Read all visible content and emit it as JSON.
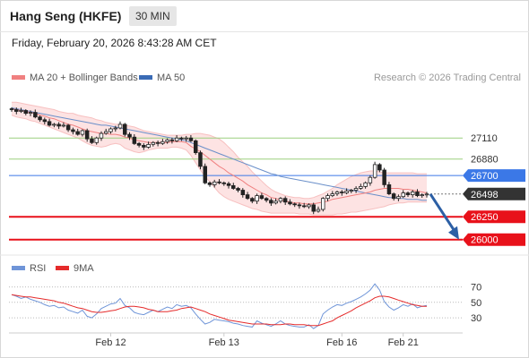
{
  "header": {
    "title": "Hang Seng (HKFE)",
    "timeframe": "30 MIN",
    "datetime": "Friday, February 20, 2026 8:43:28 AM CET"
  },
  "colors": {
    "bollinger": "#f08080",
    "bollinger_fill": "#fde3e3",
    "ma50": "#6a8fc9",
    "ma50_legend": "#3a6bb5",
    "resistance_green": "#9ccf7f",
    "pivot_blue": "#3b78e7",
    "support_red": "#e8111a",
    "current_price": "#333333",
    "arrow": "#2c5fa5",
    "rsi": "#6f95d8",
    "rsi_ma": "#e52b2b",
    "candle_up": "#ffffff",
    "candle_down": "#222222"
  },
  "legend": {
    "bollinger_label": "MA 20 + Bollinger Bands",
    "ma50_label": "MA 50",
    "copyright": "Research © 2026 Trading Central"
  },
  "rsi_legend": {
    "rsi_label": "RSI",
    "ma_label": "9MA"
  },
  "chart_data": {
    "type": "candlestick",
    "price_axis": {
      "min": 25880,
      "max": 27640
    },
    "levels": [
      {
        "value": 27110,
        "label": "27110",
        "kind": "resistance"
      },
      {
        "value": 26880,
        "label": "26880",
        "kind": "resistance"
      },
      {
        "value": 26700,
        "label": "26700",
        "kind": "pivot"
      },
      {
        "value": 26498,
        "label": "26498",
        "kind": "current"
      },
      {
        "value": 26250,
        "label": "26250",
        "kind": "support"
      },
      {
        "value": 26000,
        "label": "26000",
        "kind": "support"
      }
    ],
    "arrow": {
      "from_price": 26498,
      "to_price": 26000,
      "direction": "down"
    },
    "x_labels": [
      {
        "label": "Feb 12",
        "index": 21
      },
      {
        "label": "Feb 13",
        "index": 45
      },
      {
        "label": "Feb 16",
        "index": 70
      },
      {
        "label": "Feb 21",
        "index": 83
      }
    ],
    "close": [
      27420,
      27400,
      27410,
      27380,
      27390,
      27340,
      27310,
      27290,
      27250,
      27260,
      27240,
      27250,
      27200,
      27180,
      27150,
      27190,
      27100,
      27060,
      27110,
      27160,
      27180,
      27210,
      27220,
      27260,
      27150,
      27120,
      27050,
      27030,
      27010,
      27040,
      27060,
      27050,
      27070,
      27090,
      27080,
      27110,
      27100,
      27110,
      27080,
      26950,
      26800,
      26620,
      26600,
      26630,
      26620,
      26610,
      26590,
      26560,
      26540,
      26490,
      26450,
      26420,
      26480,
      26450,
      26430,
      26400,
      26420,
      26450,
      26410,
      26390,
      26380,
      26370,
      26360,
      26380,
      26310,
      26330,
      26450,
      26480,
      26500,
      26520,
      26510,
      26530,
      26540,
      26560,
      26580,
      26620,
      26680,
      26820,
      26760,
      26600,
      26500,
      26450,
      26470,
      26510,
      26490,
      26520,
      26480,
      26490,
      26498
    ],
    "ma20": [
      27430,
      27420,
      27410,
      27400,
      27390,
      27380,
      27360,
      27350,
      27330,
      27320,
      27300,
      27280,
      27260,
      27250,
      27230,
      27210,
      27190,
      27180,
      27170,
      27160,
      27160,
      27150,
      27150,
      27140,
      27120,
      27110,
      27090,
      27080,
      27070,
      27060,
      27060,
      27060,
      27060,
      27060,
      27070,
      27070,
      27070,
      27060,
      27020,
      26990,
      26960,
      26920,
      26880,
      26840,
      26800,
      26770,
      26730,
      26700,
      26670,
      26640,
      26600,
      26570,
      26540,
      26510,
      26490,
      26460,
      26450,
      26430,
      26420,
      26410,
      26400,
      26400,
      26390,
      26390,
      26390,
      26400,
      26410,
      26420,
      26440,
      26450,
      26460,
      26470,
      26480,
      26490,
      26500,
      26510,
      26520,
      26540,
      26550,
      26560,
      26560,
      26560,
      26560,
      26550,
      26550,
      26540,
      26530,
      26520,
      26510
    ],
    "ma50": [
      27440,
      27430,
      27420,
      27410,
      27400,
      27390,
      27380,
      27370,
      27360,
      27350,
      27340,
      27330,
      27320,
      27310,
      27300,
      27290,
      27280,
      27270,
      27260,
      27250,
      27250,
      27240,
      27230,
      27220,
      27210,
      27200,
      27190,
      27180,
      27170,
      27160,
      27150,
      27140,
      27130,
      27120,
      27110,
      27100,
      27090,
      27080,
      27060,
      27040,
      27020,
      27000,
      26980,
      26960,
      26940,
      26920,
      26900,
      26880,
      26860,
      26840,
      26820,
      26800,
      26780,
      26760,
      26740,
      26720,
      26710,
      26690,
      26680,
      26670,
      26660,
      26650,
      26640,
      26630,
      26620,
      26610,
      26600,
      26590,
      26580,
      26570,
      26560,
      26550,
      26540,
      26530,
      26520,
      26510,
      26500,
      26490,
      26480,
      26470,
      26460,
      26460,
      26450,
      26450,
      26440,
      26440,
      26440,
      26430,
      26430
    ],
    "bb_upper": [
      27500,
      27500,
      27490,
      27480,
      27470,
      27460,
      27450,
      27440,
      27430,
      27420,
      27400,
      27390,
      27380,
      27380,
      27360,
      27350,
      27340,
      27330,
      27310,
      27300,
      27280,
      27270,
      27260,
      27260,
      27250,
      27240,
      27230,
      27210,
      27190,
      27180,
      27170,
      27160,
      27150,
      27140,
      27140,
      27140,
      27140,
      27150,
      27150,
      27160,
      27160,
      27150,
      27140,
      27120,
      27100,
      27060,
      27010,
      26960,
      26900,
      26850,
      26800,
      26740,
      26690,
      26640,
      26590,
      26550,
      26520,
      26500,
      26480,
      26470,
      26460,
      26460,
      26450,
      26450,
      26460,
      26480,
      26500,
      26530,
      26560,
      26600,
      26630,
      26660,
      26690,
      26710,
      26730,
      26740,
      26750,
      26750,
      26740,
      26730,
      26730,
      26730,
      26730,
      26730,
      26730,
      26730,
      26720,
      26720,
      26720
    ],
    "bb_lower": [
      27360,
      27340,
      27330,
      27320,
      27300,
      27290,
      27270,
      27250,
      27230,
      27210,
      27190,
      27170,
      27150,
      27130,
      27110,
      27080,
      27050,
      27030,
      27020,
      27010,
      27020,
      27040,
      27050,
      27040,
      27000,
      26980,
      26960,
      26950,
      26960,
      26980,
      26990,
      27000,
      27000,
      27000,
      27010,
      27010,
      27000,
      26980,
      26920,
      26840,
      26760,
      26690,
      26630,
      26570,
      26510,
      26470,
      26440,
      26420,
      26400,
      26380,
      26360,
      26340,
      26330,
      26310,
      26300,
      26290,
      26290,
      26290,
      26290,
      26290,
      26290,
      26280,
      26280,
      26280,
      26270,
      26270,
      26270,
      26270,
      26270,
      26280,
      26280,
      26290,
      26300,
      26300,
      26310,
      26320,
      26330,
      26340,
      26350,
      26360,
      26380,
      26390,
      26400,
      26400,
      26410,
      26410,
      26410,
      26410,
      26410
    ],
    "rsi": {
      "axis": {
        "min": 15,
        "max": 80,
        "ticks": [
          70,
          50,
          30
        ]
      },
      "rsi": [
        60,
        58,
        55,
        57,
        54,
        52,
        50,
        47,
        45,
        46,
        43,
        44,
        40,
        38,
        36,
        40,
        32,
        30,
        35,
        42,
        45,
        48,
        49,
        55,
        46,
        43,
        37,
        35,
        34,
        37,
        40,
        38,
        41,
        44,
        42,
        47,
        45,
        46,
        43,
        35,
        28,
        22,
        24,
        28,
        27,
        26,
        25,
        23,
        22,
        20,
        19,
        18,
        26,
        23,
        21,
        19,
        22,
        26,
        22,
        20,
        19,
        18,
        18,
        21,
        16,
        20,
        35,
        40,
        44,
        47,
        46,
        49,
        51,
        54,
        57,
        61,
        66,
        74,
        66,
        51,
        44,
        40,
        43,
        47,
        45,
        48,
        43,
        45,
        46
      ],
      "ma9": [
        60,
        59,
        58,
        57,
        57,
        56,
        55,
        54,
        53,
        52,
        50,
        49,
        47,
        45,
        43,
        42,
        40,
        38,
        37,
        37,
        38,
        39,
        40,
        42,
        44,
        45,
        45,
        44,
        43,
        41,
        40,
        38,
        38,
        38,
        39,
        40,
        42,
        43,
        44,
        42,
        40,
        38,
        35,
        33,
        31,
        29,
        27,
        26,
        25,
        24,
        23,
        22,
        22,
        22,
        22,
        21,
        21,
        21,
        22,
        22,
        21,
        21,
        21,
        20,
        20,
        20,
        22,
        24,
        26,
        30,
        33,
        36,
        39,
        43,
        46,
        49,
        52,
        56,
        58,
        58,
        57,
        55,
        53,
        51,
        49,
        47,
        46,
        45,
        45
      ]
    }
  }
}
